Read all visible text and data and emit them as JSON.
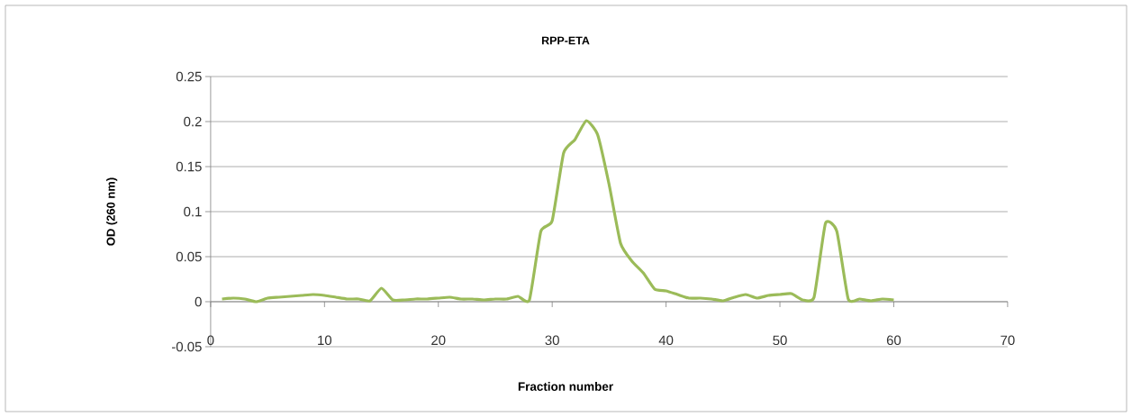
{
  "chart_data": {
    "type": "line",
    "title": "RPP-ETA",
    "xlabel": "Fraction number",
    "ylabel": "OD (260 nm)",
    "x": [
      1,
      2,
      3,
      4,
      5,
      6,
      7,
      8,
      9,
      10,
      11,
      12,
      13,
      14,
      15,
      16,
      17,
      18,
      19,
      20,
      21,
      22,
      23,
      24,
      25,
      26,
      27,
      28,
      29,
      30,
      31,
      32,
      33,
      34,
      35,
      36,
      37,
      38,
      39,
      40,
      41,
      42,
      43,
      44,
      45,
      46,
      47,
      48,
      49,
      50,
      51,
      52,
      53,
      54,
      55,
      56,
      57,
      58,
      59,
      60
    ],
    "series": [
      {
        "color": "#9bbb59",
        "values": [
          0.003,
          0.004,
          0.003,
          0,
          0.004,
          0.005,
          0.006,
          0.007,
          0.008,
          0.007,
          0.005,
          0.003,
          0.003,
          0.001,
          0.015,
          0.002,
          0.002,
          0.003,
          0.003,
          0.004,
          0.005,
          0.003,
          0.003,
          0.002,
          0.003,
          0.003,
          0.006,
          0.002,
          0.078,
          0.09,
          0.165,
          0.18,
          0.201,
          0.185,
          0.13,
          0.065,
          0.045,
          0.032,
          0.014,
          0.012,
          0.008,
          0.004,
          0.004,
          0.003,
          0.001,
          0.005,
          0.008,
          0.004,
          0.007,
          0.008,
          0.009,
          0.002,
          0.005,
          0.087,
          0.078,
          0.003,
          0.003,
          0.001,
          0.003,
          0.002
        ]
      }
    ],
    "xlim": [
      0,
      70
    ],
    "xticks": [
      0,
      10,
      20,
      30,
      40,
      50,
      60,
      70
    ],
    "ylim": [
      -0.05,
      0.25
    ],
    "yticks": [
      -0.05,
      0,
      0.05,
      0.1,
      0.15,
      0.2,
      0.25
    ],
    "grid": "y",
    "marker": "none",
    "line_style": "solid"
  }
}
